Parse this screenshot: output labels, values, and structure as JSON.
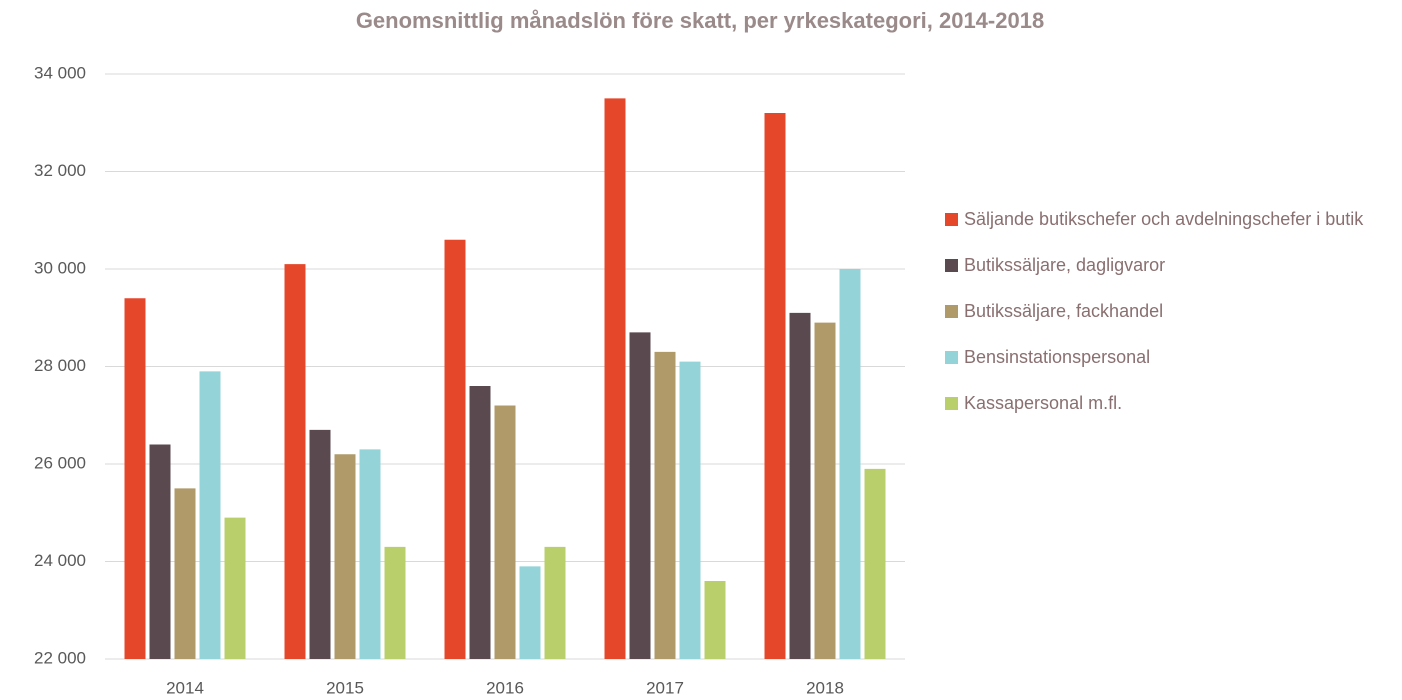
{
  "chart_data": {
    "type": "bar",
    "title": "Genomsnittlig månadslön före skatt, per yrkeskategori, 2014-2018",
    "categories": [
      "2014",
      "2015",
      "2016",
      "2017",
      "2018"
    ],
    "series": [
      {
        "name": "Säljande butikschefer och avdelningschefer i butik",
        "color": "#e5472b",
        "values": [
          29400,
          30100,
          30600,
          33500,
          33200
        ]
      },
      {
        "name": "Butikssäljare, dagligvaror",
        "color": "#5a4a4f",
        "values": [
          26400,
          26700,
          27600,
          28700,
          29100
        ]
      },
      {
        "name": "Butikssäljare, fackhandel",
        "color": "#b09a6a",
        "values": [
          25500,
          26200,
          27200,
          28300,
          28900
        ]
      },
      {
        "name": "Bensinstationspersonal",
        "color": "#94d3d8",
        "values": [
          27900,
          26300,
          23900,
          28100,
          30000
        ]
      },
      {
        "name": "Kassapersonal m.fl.",
        "color": "#b9cf6c",
        "values": [
          24900,
          24300,
          24300,
          23600,
          25900
        ]
      }
    ],
    "ylim": [
      22000,
      34000
    ],
    "yticks": [
      {
        "value": 22000,
        "label": "22 000"
      },
      {
        "value": 24000,
        "label": "24 000"
      },
      {
        "value": 26000,
        "label": "26 000"
      },
      {
        "value": 28000,
        "label": "28 000"
      },
      {
        "value": 30000,
        "label": "30 000"
      },
      {
        "value": 32000,
        "label": "32 000"
      },
      {
        "value": 34000,
        "label": "34 000"
      }
    ],
    "grid": true,
    "legend": "right"
  }
}
